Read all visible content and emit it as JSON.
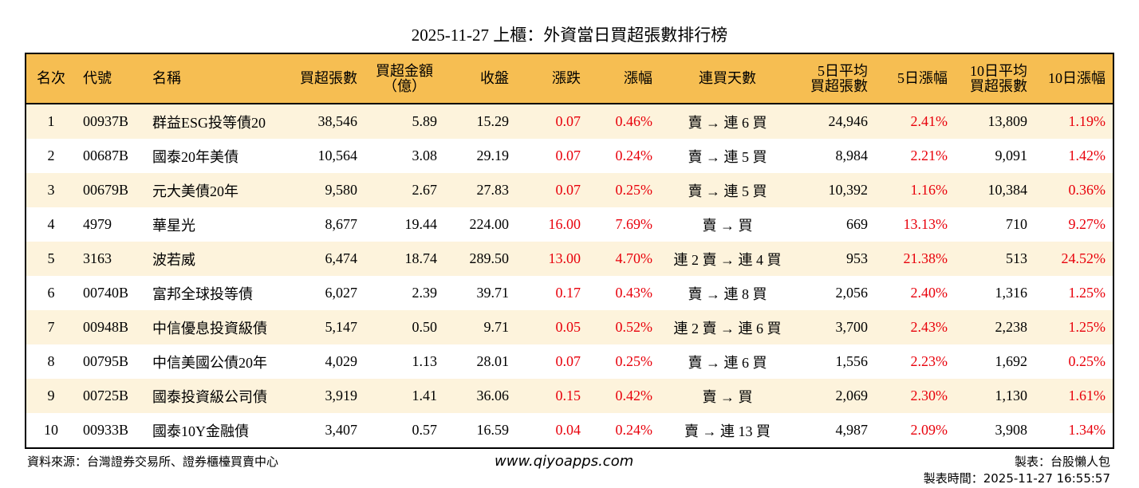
{
  "title": "2025-11-27 上櫃：外資當日買超張數排行榜",
  "colors": {
    "header_bg": "#F6BE52",
    "stripe_bg": "#FDF3DC",
    "up": "#E8000B"
  },
  "columns": [
    "名次",
    "代號",
    "名稱",
    "買超張數",
    "買超金額\n（億）",
    "收盤",
    "漲跌",
    "漲幅",
    "連買天數",
    "5日平均\n買超張數",
    "5日漲幅",
    "10日平均\n買超張數",
    "10日漲幅"
  ],
  "rows": [
    [
      "1",
      "00937B",
      "群益ESG投等債20",
      "38,546",
      "5.89",
      "15.29",
      "0.07",
      "0.46%",
      "賣 → 連 6 買",
      "24,946",
      "2.41%",
      "13,809",
      "1.19%"
    ],
    [
      "2",
      "00687B",
      "國泰20年美債",
      "10,564",
      "3.08",
      "29.19",
      "0.07",
      "0.24%",
      "賣 → 連 5 買",
      "8,984",
      "2.21%",
      "9,091",
      "1.42%"
    ],
    [
      "3",
      "00679B",
      "元大美債20年",
      "9,580",
      "2.67",
      "27.83",
      "0.07",
      "0.25%",
      "賣 → 連 5 買",
      "10,392",
      "1.16%",
      "10,384",
      "0.36%"
    ],
    [
      "4",
      "4979",
      "華星光",
      "8,677",
      "19.44",
      "224.00",
      "16.00",
      "7.69%",
      "賣 → 買",
      "669",
      "13.13%",
      "710",
      "9.27%"
    ],
    [
      "5",
      "3163",
      "波若威",
      "6,474",
      "18.74",
      "289.50",
      "13.00",
      "4.70%",
      "連 2 賣 → 連 4 買",
      "953",
      "21.38%",
      "513",
      "24.52%"
    ],
    [
      "6",
      "00740B",
      "富邦全球投等債",
      "6,027",
      "2.39",
      "39.71",
      "0.17",
      "0.43%",
      "賣 → 連 8 買",
      "2,056",
      "2.40%",
      "1,316",
      "1.25%"
    ],
    [
      "7",
      "00948B",
      "中信優息投資級債",
      "5,147",
      "0.50",
      "9.71",
      "0.05",
      "0.52%",
      "連 2 賣 → 連 6 買",
      "3,700",
      "2.43%",
      "2,238",
      "1.25%"
    ],
    [
      "8",
      "00795B",
      "中信美國公債20年",
      "4,029",
      "1.13",
      "28.01",
      "0.07",
      "0.25%",
      "賣 → 連 6 買",
      "1,556",
      "2.23%",
      "1,692",
      "0.25%"
    ],
    [
      "9",
      "00725B",
      "國泰投資級公司債",
      "3,919",
      "1.41",
      "36.06",
      "0.15",
      "0.42%",
      "賣 → 買",
      "2,069",
      "2.30%",
      "1,130",
      "1.61%"
    ],
    [
      "10",
      "00933B",
      "國泰10Y金融債",
      "3,407",
      "0.57",
      "16.59",
      "0.04",
      "0.24%",
      "賣 → 連 13 買",
      "4,987",
      "2.09%",
      "3,908",
      "1.34%"
    ]
  ],
  "footer": {
    "source": "資料來源：台灣證券交易所、證券櫃檯買賣中心",
    "website": "www.qiyoapps.com",
    "author": "製表：台股懶人包",
    "generated": "製表時間：2025-11-27 16:55:57"
  }
}
